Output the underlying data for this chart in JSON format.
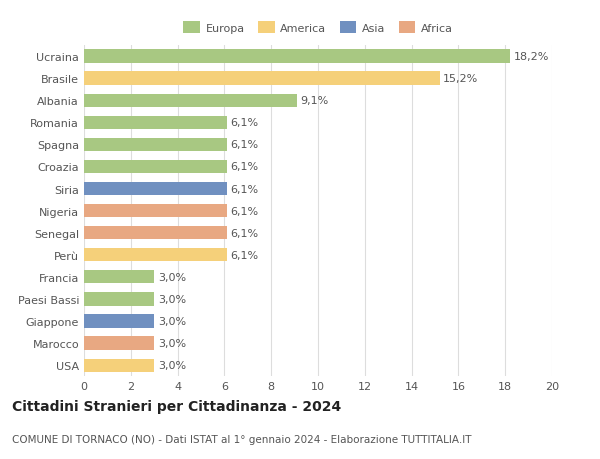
{
  "categories": [
    "Ucraina",
    "Brasile",
    "Albania",
    "Romania",
    "Spagna",
    "Croazia",
    "Siria",
    "Nigeria",
    "Senegal",
    "Perù",
    "Francia",
    "Paesi Bassi",
    "Giappone",
    "Marocco",
    "USA"
  ],
  "values": [
    18.2,
    15.2,
    9.1,
    6.1,
    6.1,
    6.1,
    6.1,
    6.1,
    6.1,
    6.1,
    3.0,
    3.0,
    3.0,
    3.0,
    3.0
  ],
  "labels": [
    "18,2%",
    "15,2%",
    "9,1%",
    "6,1%",
    "6,1%",
    "6,1%",
    "6,1%",
    "6,1%",
    "6,1%",
    "6,1%",
    "3,0%",
    "3,0%",
    "3,0%",
    "3,0%",
    "3,0%"
  ],
  "colors": [
    "#a8c882",
    "#f5d07a",
    "#a8c882",
    "#a8c882",
    "#a8c882",
    "#a8c882",
    "#7090c0",
    "#e8a882",
    "#e8a882",
    "#f5d07a",
    "#a8c882",
    "#a8c882",
    "#7090c0",
    "#e8a882",
    "#f5d07a"
  ],
  "legend_labels": [
    "Europa",
    "America",
    "Asia",
    "Africa"
  ],
  "legend_colors": [
    "#a8c882",
    "#f5d07a",
    "#7090c0",
    "#e8a882"
  ],
  "title": "Cittadini Stranieri per Cittadinanza - 2024",
  "subtitle": "COMUNE DI TORNACO (NO) - Dati ISTAT al 1° gennaio 2024 - Elaborazione TUTTITALIA.IT",
  "xlim": [
    0,
    20
  ],
  "xticks": [
    0,
    2,
    4,
    6,
    8,
    10,
    12,
    14,
    16,
    18,
    20
  ],
  "bg_color": "#ffffff",
  "grid_color": "#dddddd",
  "bar_height": 0.6,
  "label_fontsize": 8,
  "tick_fontsize": 8,
  "title_fontsize": 10,
  "subtitle_fontsize": 7.5
}
